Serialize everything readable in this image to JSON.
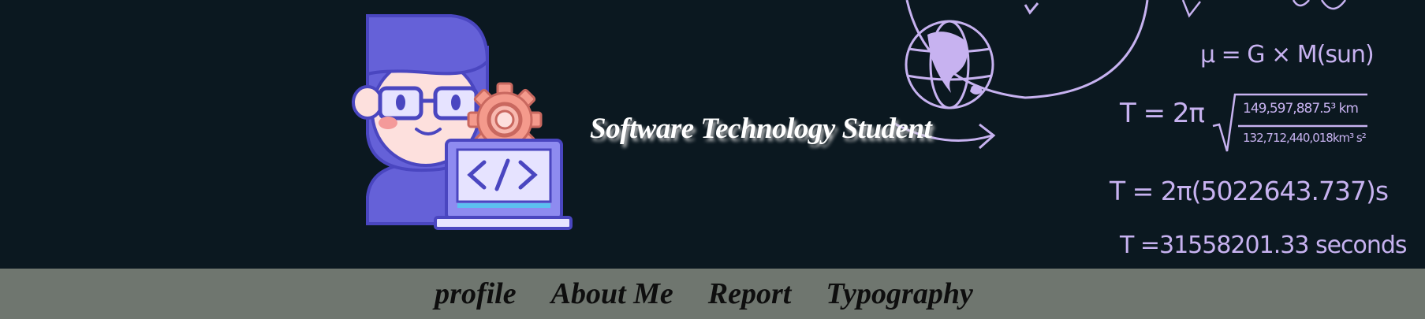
{
  "header": {
    "title": "Software Technology Student",
    "illustration_icon": "developer-with-laptop-icon",
    "background_color": "#0b1820",
    "accent_color": "#c7b2f0",
    "equations": {
      "mu": "μ = G × M(sun)",
      "t1": "T = 2π",
      "t1_numerator": "149,597,887.5³ km",
      "t1_denominator": "132,712,440,018km³ s²",
      "t2": "T = 2π(5022643.737)s",
      "t3": "T =31558201.33 seconds"
    }
  },
  "nav": {
    "background_color": "#6f766f",
    "items": [
      {
        "label": "profile"
      },
      {
        "label": "About Me"
      },
      {
        "label": "Report"
      },
      {
        "label": "Typography"
      }
    ]
  }
}
